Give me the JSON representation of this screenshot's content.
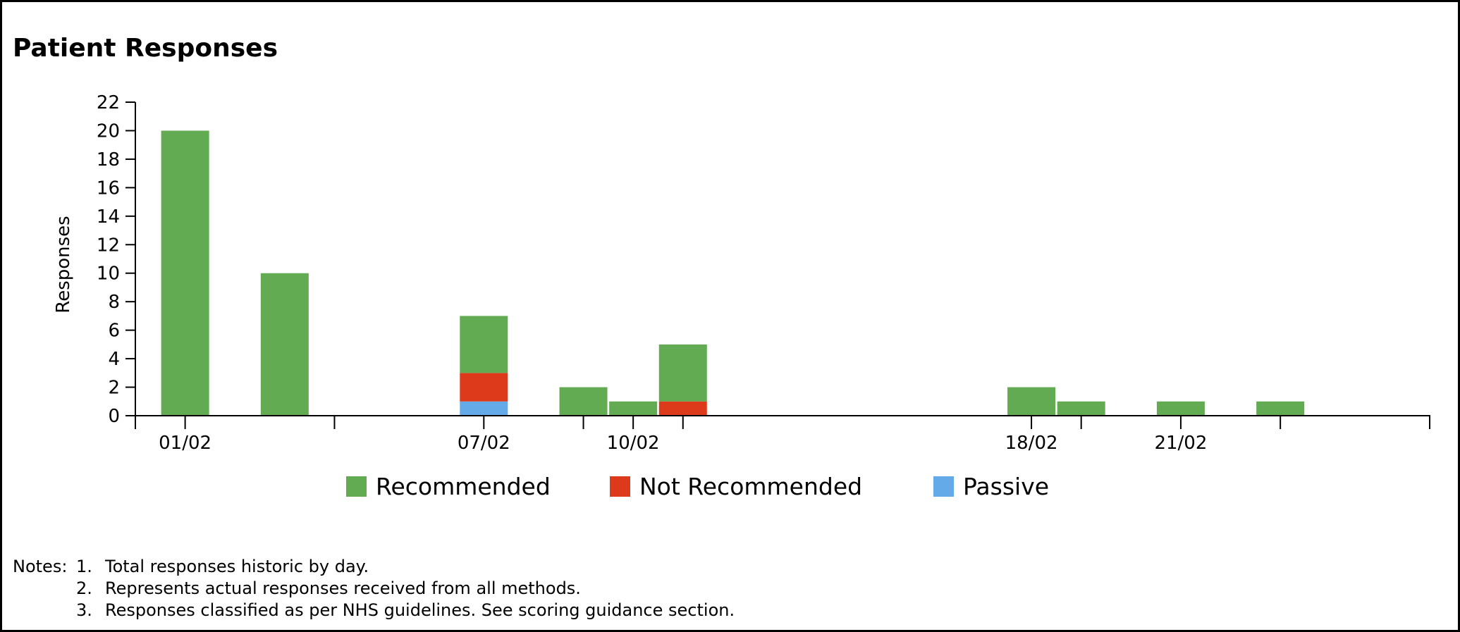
{
  "chart_data": {
    "type": "bar",
    "stacked": true,
    "title": "Patient Responses",
    "ylabel": "Responses",
    "xlabel": "",
    "ylim": [
      0,
      22
    ],
    "yticks": [
      0,
      2,
      4,
      6,
      8,
      10,
      12,
      14,
      16,
      18,
      20,
      22
    ],
    "x_domain_days": [
      0,
      26
    ],
    "x_tick_labels": [
      {
        "day": 1,
        "label": "01/02"
      },
      {
        "day": 7,
        "label": "07/02"
      },
      {
        "day": 10,
        "label": "10/02"
      },
      {
        "day": 18,
        "label": "18/02"
      },
      {
        "day": 21,
        "label": "21/02"
      }
    ],
    "x_minor_ticks": [
      0,
      4,
      9,
      11,
      19,
      23,
      26
    ],
    "days": [
      "01/02",
      "03/02",
      "07/02",
      "09/02",
      "10/02",
      "11/02",
      "18/02",
      "19/02",
      "21/02",
      "23/02"
    ],
    "day_numbers": [
      1,
      3,
      7,
      9,
      10,
      11,
      18,
      19,
      21,
      23
    ],
    "series": [
      {
        "name": "Recommended",
        "color": "#62ab52",
        "values": [
          20,
          10,
          4,
          2,
          1,
          4,
          2,
          1,
          1,
          1
        ]
      },
      {
        "name": "Not Recommended",
        "color": "#dc3a1a",
        "values": [
          0,
          0,
          2,
          0,
          0,
          1,
          0,
          0,
          0,
          0
        ]
      },
      {
        "name": "Passive",
        "color": "#64aae9",
        "values": [
          0,
          0,
          1,
          0,
          0,
          0,
          0,
          0,
          0,
          0
        ]
      }
    ],
    "stack_order_bottom_to_top": [
      "Passive",
      "Not Recommended",
      "Recommended"
    ],
    "legend_position": "bottom-center",
    "grid": false
  },
  "notes": {
    "heading": "Notes:",
    "items": [
      {
        "num": "1.",
        "text": "Total responses historic by day."
      },
      {
        "num": "2.",
        "text": "Represents actual responses received from all methods."
      },
      {
        "num": "3.",
        "text": "Responses classified as per NHS guidelines. See scoring guidance section."
      }
    ]
  }
}
